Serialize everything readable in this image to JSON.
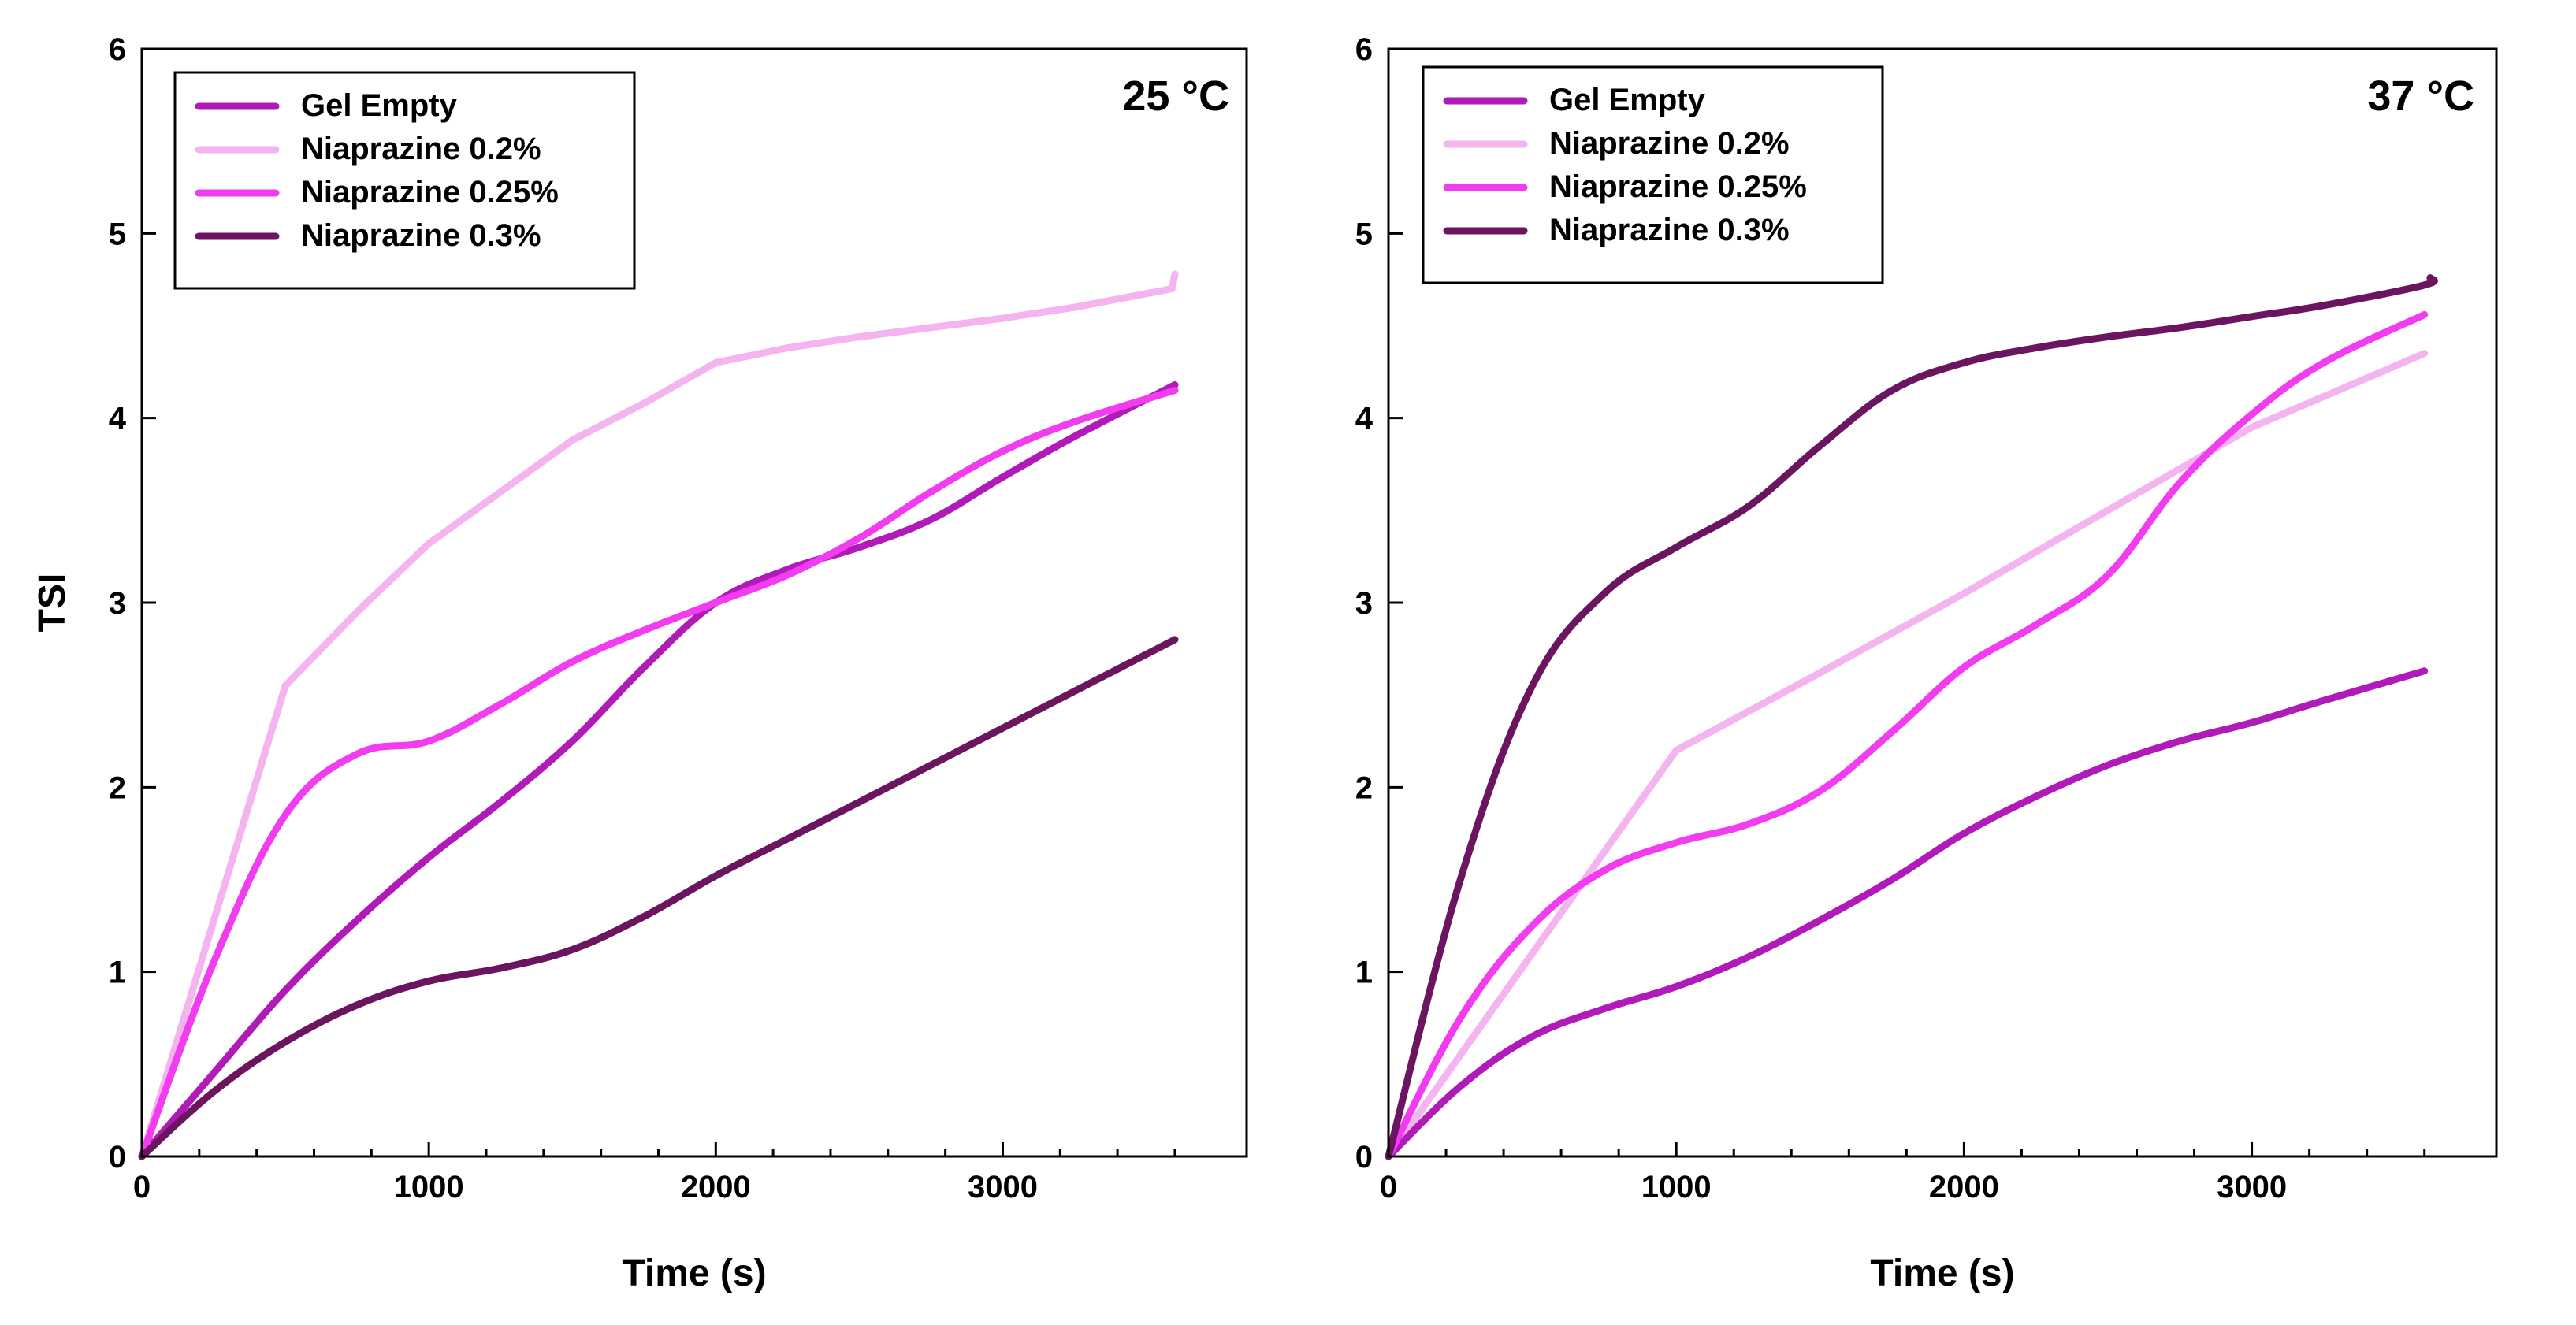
{
  "chart_data": [
    {
      "type": "line",
      "title": "25 °C",
      "xlabel": "Time (s)",
      "ylabel": "TSI",
      "xlim": [
        0,
        3850
      ],
      "ylim": [
        0,
        6
      ],
      "xticks": [
        "0",
        "1000",
        "2000",
        "3000"
      ],
      "yticks": [
        "0",
        "1",
        "2",
        "3",
        "4",
        "5",
        "6"
      ],
      "legend_position": "top-left",
      "series": [
        {
          "name": "Gel Empty",
          "color": "#b01ab8",
          "points": [
            [
              0,
              0
            ],
            [
              250,
              0.45
            ],
            [
              500,
              0.9
            ],
            [
              750,
              1.28
            ],
            [
              1000,
              1.62
            ],
            [
              1250,
              1.92
            ],
            [
              1500,
              2.25
            ],
            [
              1750,
              2.65
            ],
            [
              2000,
              3.0
            ],
            [
              2250,
              3.18
            ],
            [
              2500,
              3.3
            ],
            [
              2750,
              3.45
            ],
            [
              3000,
              3.68
            ],
            [
              3250,
              3.9
            ],
            [
              3600,
              4.18
            ]
          ]
        },
        {
          "name": "Niaprazine 0.2%",
          "color": "#f4b4ef",
          "points": [
            [
              0,
              0
            ],
            [
              500,
              2.55
            ],
            [
              750,
              2.95
            ],
            [
              1000,
              3.32
            ],
            [
              1250,
              3.6
            ],
            [
              1500,
              3.88
            ],
            [
              1750,
              4.08
            ],
            [
              2000,
              4.3
            ],
            [
              2250,
              4.38
            ],
            [
              2500,
              4.44
            ],
            [
              2750,
              4.49
            ],
            [
              3000,
              4.54
            ],
            [
              3250,
              4.6
            ],
            [
              3590,
              4.7
            ],
            [
              3600,
              4.78
            ]
          ]
        },
        {
          "name": "Niaprazine 0.25%",
          "color": "#f23cf0",
          "points": [
            [
              0,
              0
            ],
            [
              250,
              1.05
            ],
            [
              500,
              1.85
            ],
            [
              750,
              2.18
            ],
            [
              1000,
              2.25
            ],
            [
              1250,
              2.45
            ],
            [
              1500,
              2.68
            ],
            [
              1750,
              2.85
            ],
            [
              2000,
              3.0
            ],
            [
              2250,
              3.15
            ],
            [
              2500,
              3.35
            ],
            [
              2750,
              3.6
            ],
            [
              3000,
              3.82
            ],
            [
              3250,
              3.98
            ],
            [
              3600,
              4.15
            ]
          ]
        },
        {
          "name": "Niaprazine 0.3%",
          "color": "#6b1460",
          "points": [
            [
              0,
              0
            ],
            [
              250,
              0.35
            ],
            [
              500,
              0.62
            ],
            [
              750,
              0.82
            ],
            [
              1000,
              0.95
            ],
            [
              1250,
              1.02
            ],
            [
              1500,
              1.12
            ],
            [
              1750,
              1.3
            ],
            [
              2000,
              1.52
            ],
            [
              2250,
              1.72
            ],
            [
              2500,
              1.92
            ],
            [
              2750,
              2.12
            ],
            [
              3000,
              2.32
            ],
            [
              3250,
              2.52
            ],
            [
              3600,
              2.8
            ]
          ]
        }
      ]
    },
    {
      "type": "line",
      "title": "37 °C",
      "xlabel": "Time (s)",
      "ylabel": "",
      "xlim": [
        0,
        3850
      ],
      "ylim": [
        0,
        6
      ],
      "xticks": [
        "0",
        "1000",
        "2000",
        "3000"
      ],
      "yticks": [
        "0",
        "1",
        "2",
        "3",
        "4",
        "5",
        "6"
      ],
      "legend_position": "top-left",
      "series": [
        {
          "name": "Gel Empty",
          "color": "#b01ab8",
          "points": [
            [
              0,
              0
            ],
            [
              250,
              0.38
            ],
            [
              500,
              0.65
            ],
            [
              750,
              0.8
            ],
            [
              1000,
              0.92
            ],
            [
              1250,
              1.08
            ],
            [
              1500,
              1.28
            ],
            [
              1750,
              1.5
            ],
            [
              2000,
              1.75
            ],
            [
              2250,
              1.95
            ],
            [
              2500,
              2.12
            ],
            [
              2750,
              2.25
            ],
            [
              3000,
              2.35
            ],
            [
              3250,
              2.47
            ],
            [
              3600,
              2.63
            ]
          ]
        },
        {
          "name": "Niaprazine 0.2%",
          "color": "#f4b4ef",
          "points": [
            [
              0,
              0
            ],
            [
              1000,
              2.2
            ],
            [
              1500,
              2.62
            ],
            [
              2000,
              3.05
            ],
            [
              2500,
              3.5
            ],
            [
              3000,
              3.95
            ],
            [
              3600,
              4.35
            ]
          ]
        },
        {
          "name": "Niaprazine 0.25%",
          "color": "#f23cf0",
          "points": [
            [
              0,
              0
            ],
            [
              250,
              0.75
            ],
            [
              500,
              1.25
            ],
            [
              750,
              1.55
            ],
            [
              1000,
              1.7
            ],
            [
              1250,
              1.8
            ],
            [
              1500,
              1.98
            ],
            [
              1750,
              2.3
            ],
            [
              2000,
              2.65
            ],
            [
              2250,
              2.88
            ],
            [
              2500,
              3.15
            ],
            [
              2750,
              3.65
            ],
            [
              3000,
              4.02
            ],
            [
              3250,
              4.3
            ],
            [
              3600,
              4.56
            ]
          ]
        },
        {
          "name": "Niaprazine 0.3%",
          "color": "#6b1460",
          "points": [
            [
              0,
              0
            ],
            [
              250,
              1.5
            ],
            [
              500,
              2.55
            ],
            [
              750,
              3.05
            ],
            [
              1000,
              3.3
            ],
            [
              1250,
              3.52
            ],
            [
              1500,
              3.85
            ],
            [
              1750,
              4.15
            ],
            [
              2000,
              4.3
            ],
            [
              2250,
              4.38
            ],
            [
              2500,
              4.44
            ],
            [
              2750,
              4.49
            ],
            [
              3000,
              4.55
            ],
            [
              3250,
              4.61
            ],
            [
              3600,
              4.72
            ],
            [
              3620,
              4.76
            ]
          ]
        }
      ]
    }
  ]
}
